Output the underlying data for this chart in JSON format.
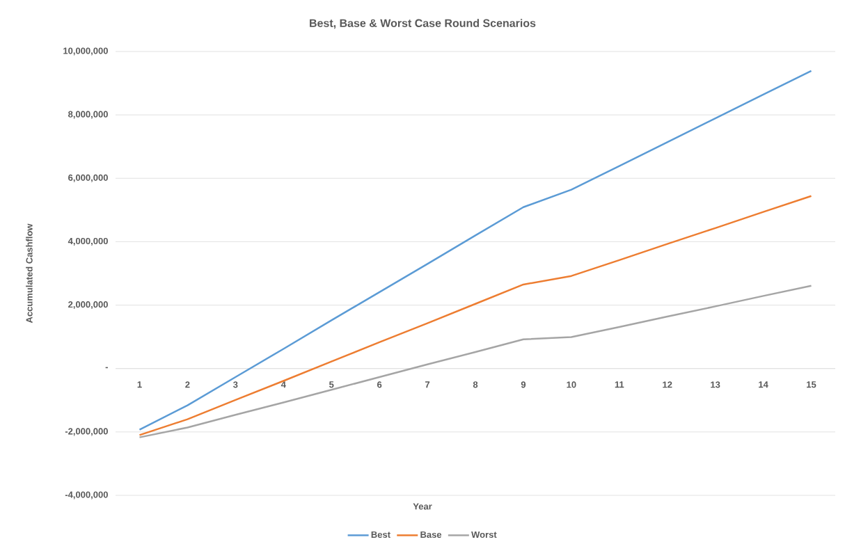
{
  "chart_data": {
    "type": "line",
    "title": "Best, Base & Worst Case Round Scenarios",
    "xlabel": "Year",
    "ylabel": "Accumulated Cashflow",
    "categories": [
      "1",
      "2",
      "3",
      "4",
      "5",
      "6",
      "7",
      "8",
      "9",
      "10",
      "11",
      "12",
      "13",
      "14",
      "15"
    ],
    "series": [
      {
        "name": "Best",
        "color": "#5b9bd5",
        "values": [
          -1930000,
          -1160000,
          -270000,
          620000,
          1520000,
          2410000,
          3300000,
          4200000,
          5090000,
          5640000,
          6390000,
          7140000,
          7890000,
          8640000,
          9390000
        ]
      },
      {
        "name": "Base",
        "color": "#ed7d31",
        "values": [
          -2100000,
          -1600000,
          -990000,
          -390000,
          220000,
          830000,
          1430000,
          2040000,
          2650000,
          2920000,
          3420000,
          3930000,
          4430000,
          4940000,
          5440000
        ]
      },
      {
        "name": "Worst",
        "color": "#a5a5a5",
        "values": [
          -2170000,
          -1860000,
          -1460000,
          -1070000,
          -670000,
          -270000,
          130000,
          520000,
          920000,
          990000,
          1310000,
          1640000,
          1960000,
          2290000,
          2610000
        ]
      }
    ],
    "ylim": [
      -4000000,
      10000000
    ],
    "yticks": [
      {
        "value": -4000000,
        "label": "-4,000,000"
      },
      {
        "value": -2000000,
        "label": "-2,000,000"
      },
      {
        "value": 0,
        "label": "-"
      },
      {
        "value": 2000000,
        "label": "2,000,000"
      },
      {
        "value": 4000000,
        "label": "4,000,000"
      },
      {
        "value": 6000000,
        "label": "6,000,000"
      },
      {
        "value": 8000000,
        "label": "8,000,000"
      },
      {
        "value": 10000000,
        "label": "10,000,000"
      }
    ],
    "grid": "y",
    "legend": "bottom"
  }
}
